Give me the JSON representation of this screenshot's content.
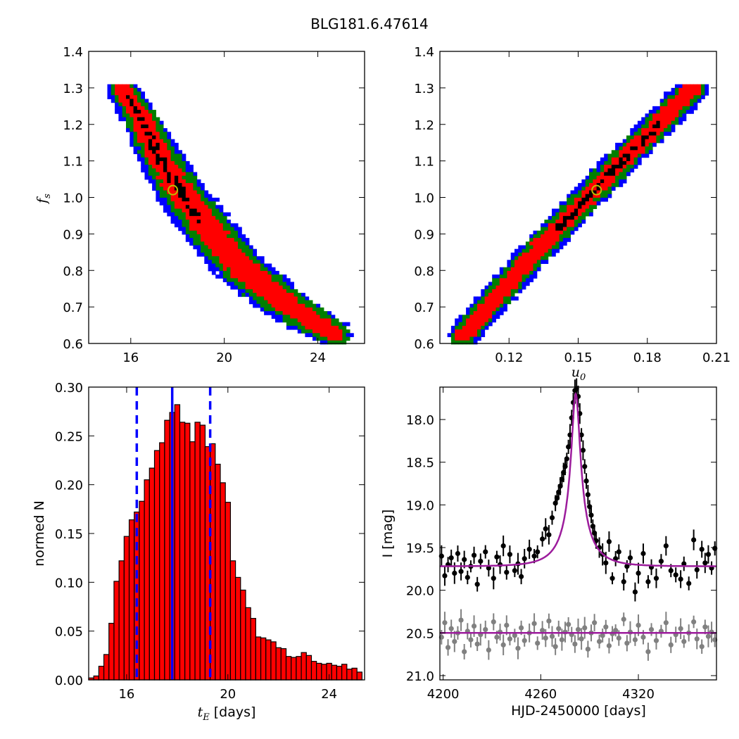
{
  "title": "BLG181.6.47614",
  "colors": {
    "contour_outer": "#0000ff",
    "contour_mid": "#007f00",
    "contour_inner": "#ff0000",
    "contour_core": "#000000",
    "best_fit_marker": "#bfbf00",
    "hist_bar": "#ff0000",
    "hist_line": "#0000ff",
    "model_curve": "#9c1c9c",
    "data_main": "#000000",
    "data_baseline": "#808080"
  },
  "chart_data": [
    {
      "type": "heatmap",
      "panel": "top-left",
      "xlabel": "",
      "ylabel": "f_s",
      "ylabel_main": "f",
      "ylabel_sub": "s",
      "xlim": [
        14.2,
        26.0
      ],
      "ylim": [
        0.6,
        1.4
      ],
      "xticks": [
        16,
        20,
        24
      ],
      "xtick_labels": [
        "16",
        "20",
        "24"
      ],
      "yticks": [
        0.6,
        0.7,
        0.8,
        0.9,
        1.0,
        1.1,
        1.2,
        1.3,
        1.4
      ],
      "ytick_labels": [
        "0.6",
        "0.7",
        "0.8",
        "0.9",
        "1.0",
        "1.1",
        "1.2",
        "1.3",
        "1.4"
      ],
      "ridge": [
        [
          15.6,
          1.3
        ],
        [
          16.4,
          1.22
        ],
        [
          17.3,
          1.1
        ],
        [
          18.3,
          1.0
        ],
        [
          19.5,
          0.9
        ],
        [
          20.7,
          0.81
        ],
        [
          22.0,
          0.74
        ],
        [
          23.3,
          0.68
        ],
        [
          24.8,
          0.625
        ]
      ],
      "core_segment": [
        15.8,
        19.0
      ],
      "best_fit": {
        "x": 17.8,
        "y": 1.02
      }
    },
    {
      "type": "heatmap",
      "panel": "top-right",
      "xlabel": "u_0",
      "xlabel_main": "u",
      "xlabel_sub": "0",
      "ylabel": "",
      "xlim": [
        0.09,
        0.21
      ],
      "ylim": [
        0.6,
        1.4
      ],
      "xticks": [
        0.12,
        0.15,
        0.18,
        0.21
      ],
      "xtick_labels": [
        "0.12",
        "0.15",
        "0.18",
        "0.21"
      ],
      "yticks": [
        0.6,
        0.7,
        0.8,
        0.9,
        1.0,
        1.1,
        1.2,
        1.3,
        1.4
      ],
      "ytick_labels": [
        "0.6",
        "0.7",
        "0.8",
        "0.9",
        "1.0",
        "1.1",
        "1.2",
        "1.3",
        "1.4"
      ],
      "ridge": [
        [
          0.1,
          0.62
        ],
        [
          0.13,
          0.84
        ],
        [
          0.16,
          1.04
        ],
        [
          0.2,
          1.3
        ]
      ],
      "core_segment": [
        0.14,
        0.185
      ],
      "best_fit": {
        "x": 0.158,
        "y": 1.02
      }
    },
    {
      "type": "bar",
      "panel": "bottom-left",
      "xlabel": "t_E [days]",
      "xlabel_main": "t",
      "xlabel_sub": "E",
      "xlabel_rest": " [days]",
      "ylabel": "normed N",
      "xlim": [
        14.5,
        25.4
      ],
      "ylim": [
        0.0,
        0.3
      ],
      "xticks": [
        16,
        20,
        24
      ],
      "xtick_labels": [
        "16",
        "20",
        "24"
      ],
      "yticks": [
        0.0,
        0.05,
        0.1,
        0.15,
        0.2,
        0.25,
        0.3
      ],
      "ytick_labels": [
        "0.00",
        "0.05",
        "0.10",
        "0.15",
        "0.20",
        "0.25",
        "0.30"
      ],
      "bin_start": 14.5,
      "bin_width": 0.2,
      "values": [
        0.002,
        0.004,
        0.014,
        0.026,
        0.058,
        0.101,
        0.122,
        0.147,
        0.164,
        0.172,
        0.183,
        0.205,
        0.217,
        0.235,
        0.243,
        0.266,
        0.274,
        0.282,
        0.264,
        0.263,
        0.244,
        0.264,
        0.261,
        0.239,
        0.242,
        0.221,
        0.202,
        0.182,
        0.122,
        0.105,
        0.092,
        0.074,
        0.063,
        0.044,
        0.043,
        0.041,
        0.039,
        0.033,
        0.032,
        0.024,
        0.023,
        0.024,
        0.028,
        0.025,
        0.019,
        0.017,
        0.016,
        0.017,
        0.015,
        0.014,
        0.016,
        0.011,
        0.012,
        0.008,
        0.006,
        0.004,
        0.002,
        0.001
      ],
      "median": 17.8,
      "ci": [
        16.4,
        19.3
      ]
    },
    {
      "type": "scatter",
      "panel": "bottom-right",
      "xlabel": "HJD-2450000 [days]",
      "ylabel": "I [mag]",
      "xlim": [
        4198,
        4368
      ],
      "ylim": [
        21.05,
        17.62
      ],
      "xticks": [
        4200,
        4260,
        4320
      ],
      "xtick_labels": [
        "4200",
        "4260",
        "4320"
      ],
      "yticks": [
        18.0,
        18.5,
        19.0,
        19.5,
        20.0,
        20.5,
        21.0
      ],
      "ytick_labels": [
        "18.0",
        "18.5",
        "19.0",
        "19.5",
        "20.0",
        "20.5",
        "21.0"
      ],
      "model": {
        "baseline": 19.72,
        "peak": 17.7,
        "t0": 4281.5,
        "t_E": 17.8,
        "u0": 0.158
      },
      "baseline_line": 20.5,
      "series": [
        {
          "points": [
            [
              4199,
              19.6
            ],
            [
              4201,
              19.83
            ],
            [
              4203,
              19.7
            ],
            [
              4205,
              19.62
            ],
            [
              4207,
              19.8
            ],
            [
              4209,
              19.57
            ],
            [
              4211,
              19.78
            ],
            [
              4213,
              19.64
            ],
            [
              4215,
              19.85
            ],
            [
              4217,
              19.72
            ],
            [
              4219,
              19.59
            ],
            [
              4221,
              19.93
            ],
            [
              4223,
              19.66
            ],
            [
              4226,
              19.55
            ],
            [
              4228,
              19.74
            ],
            [
              4231,
              19.86
            ],
            [
              4233,
              19.61
            ],
            [
              4235,
              19.7
            ],
            [
              4237,
              19.48
            ],
            [
              4239,
              19.79
            ],
            [
              4241,
              19.58
            ],
            [
              4244,
              19.77
            ],
            [
              4246,
              19.69
            ],
            [
              4248,
              19.84
            ],
            [
              4250,
              19.63
            ],
            [
              4253,
              19.52
            ],
            [
              4256,
              19.6
            ],
            [
              4258,
              19.55
            ],
            [
              4261,
              19.4
            ],
            [
              4263,
              19.28
            ],
            [
              4265,
              19.35
            ],
            [
              4267,
              19.15
            ],
            [
              4269,
              18.98
            ],
            [
              4270,
              18.92
            ],
            [
              4271,
              18.85
            ],
            [
              4272,
              18.78
            ],
            [
              4273,
              18.7
            ],
            [
              4274,
              18.62
            ],
            [
              4275,
              18.55
            ],
            [
              4276,
              18.46
            ],
            [
              4277,
              18.32
            ],
            [
              4278,
              18.18
            ],
            [
              4279,
              17.98
            ],
            [
              4280,
              17.8
            ],
            [
              4281,
              17.66
            ],
            [
              4282,
              17.64
            ],
            [
              4283,
              17.73
            ],
            [
              4284,
              17.93
            ],
            [
              4285,
              18.18
            ],
            [
              4286,
              18.36
            ],
            [
              4287,
              18.55
            ],
            [
              4288,
              18.72
            ],
            [
              4289,
              18.88
            ],
            [
              4290,
              19.02
            ],
            [
              4291,
              19.12
            ],
            [
              4292,
              19.25
            ],
            [
              4293,
              19.33
            ],
            [
              4294,
              19.42
            ],
            [
              4296,
              19.5
            ],
            [
              4298,
              19.58
            ],
            [
              4300,
              19.68
            ],
            [
              4302,
              19.43
            ],
            [
              4304,
              19.86
            ],
            [
              4306,
              19.63
            ],
            [
              4308,
              19.55
            ],
            [
              4311,
              19.9
            ],
            [
              4313,
              19.72
            ],
            [
              4315,
              19.62
            ],
            [
              4318,
              20.02
            ],
            [
              4320,
              19.8
            ],
            [
              4323,
              19.57
            ],
            [
              4326,
              19.9
            ],
            [
              4328,
              19.73
            ],
            [
              4331,
              19.86
            ],
            [
              4334,
              19.66
            ],
            [
              4337,
              19.48
            ],
            [
              4340,
              19.77
            ],
            [
              4343,
              19.82
            ],
            [
              4346,
              19.87
            ],
            [
              4348,
              19.69
            ],
            [
              4351,
              19.92
            ],
            [
              4354,
              19.41
            ],
            [
              4356,
              19.76
            ],
            [
              4359,
              19.52
            ],
            [
              4361,
              19.68
            ],
            [
              4363,
              19.58
            ],
            [
              4365,
              19.74
            ],
            [
              4367,
              19.51
            ]
          ]
        },
        {
          "points": [
            [
              4199,
              20.55
            ],
            [
              4201,
              20.38
            ],
            [
              4203,
              20.67
            ],
            [
              4205,
              20.45
            ],
            [
              4207,
              20.6
            ],
            [
              4209,
              20.5
            ],
            [
              4211,
              20.35
            ],
            [
              4213,
              20.72
            ],
            [
              4215,
              20.48
            ],
            [
              4217,
              20.58
            ],
            [
              4219,
              20.42
            ],
            [
              4221,
              20.63
            ],
            [
              4223,
              20.52
            ],
            [
              4226,
              20.46
            ],
            [
              4228,
              20.7
            ],
            [
              4231,
              20.37
            ],
            [
              4233,
              20.55
            ],
            [
              4235,
              20.49
            ],
            [
              4237,
              20.64
            ],
            [
              4239,
              20.41
            ],
            [
              4241,
              20.57
            ],
            [
              4244,
              20.53
            ],
            [
              4246,
              20.68
            ],
            [
              4248,
              20.44
            ],
            [
              4250,
              20.59
            ],
            [
              4253,
              20.5
            ],
            [
              4256,
              20.39
            ],
            [
              4258,
              20.62
            ],
            [
              4261,
              20.47
            ],
            [
              4263,
              20.56
            ],
            [
              4265,
              20.36
            ],
            [
              4267,
              20.54
            ],
            [
              4269,
              20.66
            ],
            [
              4271,
              20.45
            ],
            [
              4273,
              20.58
            ],
            [
              4275,
              20.49
            ],
            [
              4277,
              20.4
            ],
            [
              4279,
              20.52
            ],
            [
              4281,
              20.63
            ],
            [
              4283,
              20.46
            ],
            [
              4285,
              20.57
            ],
            [
              4287,
              20.44
            ],
            [
              4289,
              20.69
            ],
            [
              4291,
              20.5
            ],
            [
              4293,
              20.38
            ],
            [
              4296,
              20.6
            ],
            [
              4298,
              20.53
            ],
            [
              4300,
              20.43
            ],
            [
              4302,
              20.65
            ],
            [
              4304,
              20.51
            ],
            [
              4306,
              20.47
            ],
            [
              4308,
              20.56
            ],
            [
              4311,
              20.34
            ],
            [
              4313,
              20.62
            ],
            [
              4315,
              20.49
            ],
            [
              4318,
              20.58
            ],
            [
              4320,
              20.41
            ],
            [
              4323,
              20.55
            ],
            [
              4326,
              20.72
            ],
            [
              4328,
              20.46
            ],
            [
              4331,
              20.59
            ],
            [
              4334,
              20.48
            ],
            [
              4337,
              20.38
            ],
            [
              4340,
              20.64
            ],
            [
              4343,
              20.52
            ],
            [
              4346,
              20.45
            ],
            [
              4348,
              20.6
            ],
            [
              4351,
              20.5
            ],
            [
              4354,
              20.37
            ],
            [
              4356,
              20.57
            ],
            [
              4359,
              20.66
            ],
            [
              4361,
              20.43
            ],
            [
              4363,
              20.54
            ],
            [
              4365,
              20.49
            ],
            [
              4367,
              20.58
            ]
          ]
        }
      ]
    }
  ]
}
